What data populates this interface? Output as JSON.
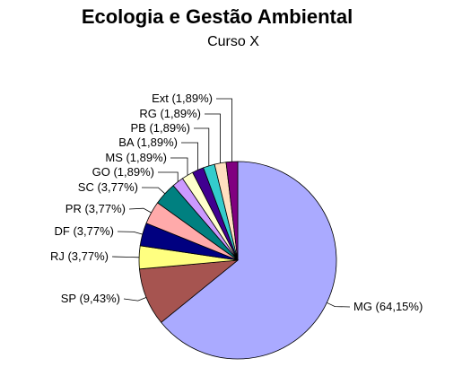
{
  "chart_data": {
    "type": "pie",
    "title": "Ecologia e Gestão Ambiental",
    "subtitle": "Curso X",
    "legend": "none",
    "slices": [
      {
        "label": "MG (64,15%)",
        "value": 64.15,
        "color": "#aaaaff"
      },
      {
        "label": "SP (9,43%)",
        "value": 9.43,
        "color": "#a65450"
      },
      {
        "label": "RJ (3,77%)",
        "value": 3.77,
        "color": "#ffff80"
      },
      {
        "label": "DF (3,77%)",
        "value": 3.77,
        "color": "#000080"
      },
      {
        "label": "PR (3,77%)",
        "value": 3.77,
        "color": "#ffaaaa"
      },
      {
        "label": "SC (3,77%)",
        "value": 3.77,
        "color": "#008080"
      },
      {
        "label": "GO (1,89%)",
        "value": 1.89,
        "color": "#cc99ff"
      },
      {
        "label": "MS (1,89%)",
        "value": 1.89,
        "color": "#ffffcc"
      },
      {
        "label": "BA (1,89%)",
        "value": 1.89,
        "color": "#400090"
      },
      {
        "label": "PB (1,89%)",
        "value": 1.89,
        "color": "#33cccc"
      },
      {
        "label": "RG (1,89%)",
        "value": 1.89,
        "color": "#ffe0c0"
      },
      {
        "label": "Ext (1,89%)",
        "value": 1.89,
        "color": "#800080"
      }
    ]
  }
}
